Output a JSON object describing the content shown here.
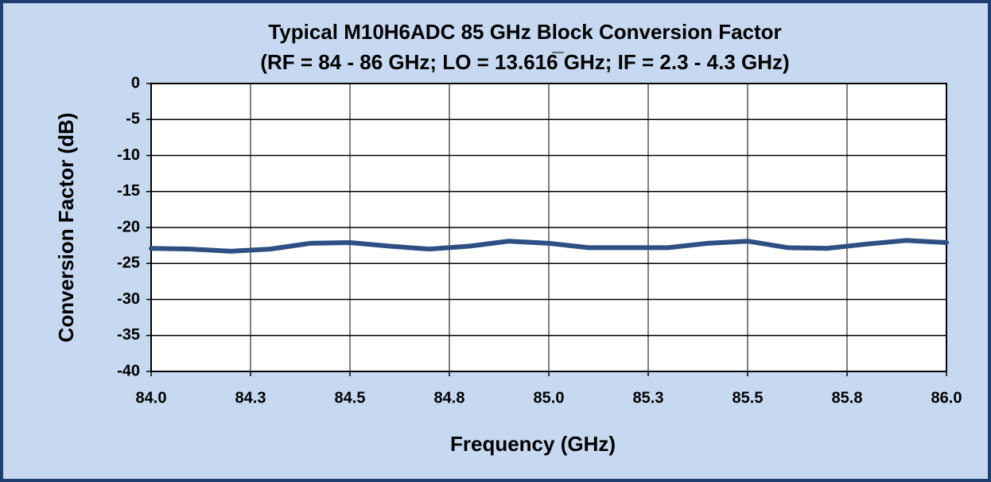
{
  "chart_data": {
    "type": "line",
    "title": "Typical M10H6ADC 85 GHz Block Conversion Factor",
    "subtitle": "(RF  = 84 - 86 GHz; LO = 13.616̅ GHz; IF = 2.3 - 4.3 GHz)",
    "x_label": "Frequency (GHz)",
    "y_label": "Conversion Factor (dB)",
    "x": [
      84.0,
      84.1,
      84.2,
      84.3,
      84.4,
      84.5,
      84.6,
      84.7,
      84.8,
      84.9,
      85.0,
      85.1,
      85.2,
      85.3,
      85.4,
      85.5,
      85.6,
      85.7,
      85.8,
      85.9,
      86.0
    ],
    "series": [
      {
        "color": "#2e4f83",
        "values": [
          -22.9,
          -23.0,
          -23.3,
          -23.0,
          -22.2,
          -22.1,
          -22.6,
          -23.0,
          -22.6,
          -21.9,
          -22.2,
          -22.8,
          -22.8,
          -22.8,
          -22.2,
          -21.9,
          -22.8,
          -22.9,
          -22.3,
          -21.8,
          -22.1
        ]
      }
    ],
    "xlim": [
      84,
      86
    ],
    "xticks": [
      {
        "value": 84,
        "label": "84.0"
      },
      {
        "value": 84.25,
        "label": "84.3"
      },
      {
        "value": 84.5,
        "label": "84.5"
      },
      {
        "value": 84.75,
        "label": "84.8"
      },
      {
        "value": 85,
        "label": "85.0"
      },
      {
        "value": 85.25,
        "label": "85.3"
      },
      {
        "value": 85.5,
        "label": "85.5"
      },
      {
        "value": 85.75,
        "label": "85.8"
      },
      {
        "value": 86,
        "label": "86.0"
      }
    ],
    "ylim": [
      -40,
      0
    ],
    "yticks": [
      0,
      -5,
      -10,
      -15,
      -20,
      -25,
      -30,
      -35,
      -40
    ],
    "grid": true
  }
}
